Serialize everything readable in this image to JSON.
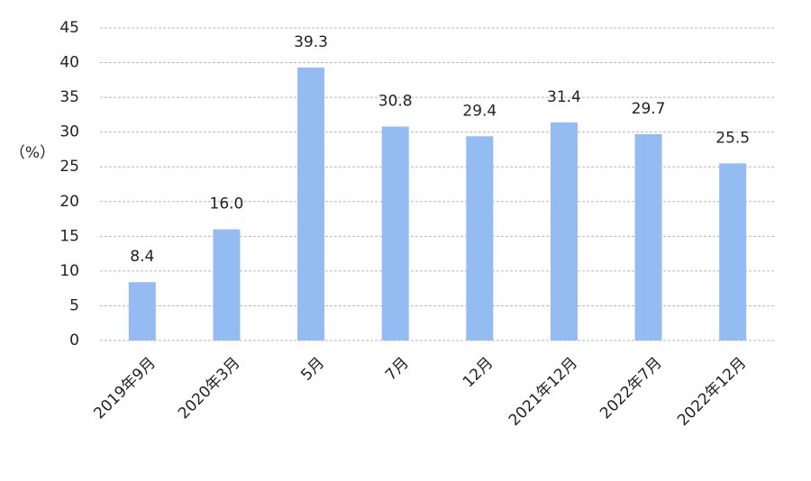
{
  "chart_data": {
    "type": "bar",
    "y_label": "（%）",
    "categories": [
      "2019年9月",
      "2020年3月",
      "5月",
      "7月",
      "12月",
      "2021年12月",
      "2022年7月",
      "2022年12月"
    ],
    "values": [
      8.4,
      16.0,
      39.3,
      30.8,
      29.4,
      31.4,
      29.7,
      25.5
    ],
    "value_labels": [
      "8.4",
      "16.0",
      "39.3",
      "30.8",
      "29.4",
      "31.4",
      "29.7",
      "25.5"
    ],
    "color": "#94bcf2",
    "ylim": [
      0,
      45
    ],
    "yticks": [
      0,
      5,
      10,
      15,
      20,
      25,
      30,
      35,
      40,
      45
    ],
    "grid": true
  }
}
